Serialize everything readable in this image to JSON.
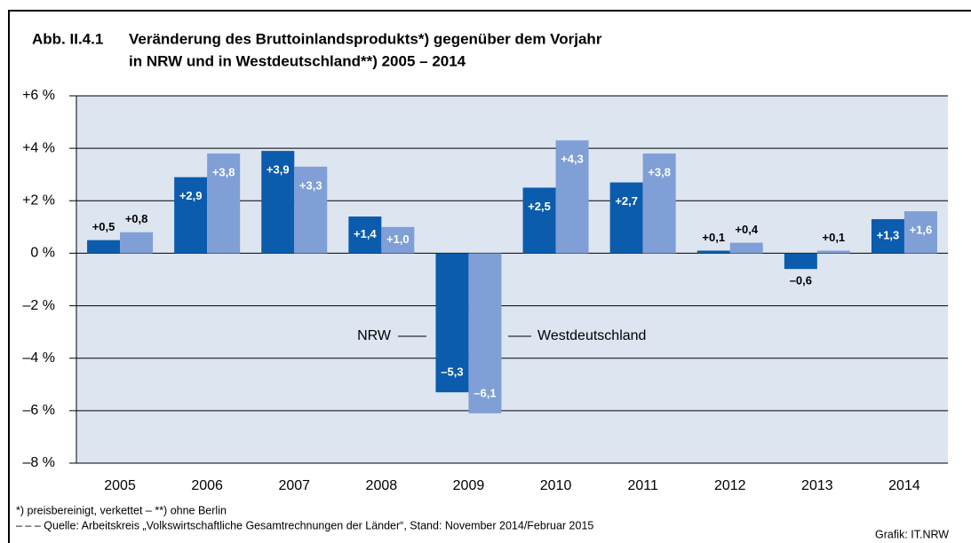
{
  "chart_data": {
    "type": "bar",
    "title_number": "Abb. II.4.1",
    "title": [
      "Veränderung des Bruttoinlandsprodukts*) gegenüber dem Vorjahr",
      "in NRW und in Westdeutschland**) 2005 – 2014"
    ],
    "categories": [
      "2005",
      "2006",
      "2007",
      "2008",
      "2009",
      "2010",
      "2011",
      "2012",
      "2013",
      "2014"
    ],
    "series": [
      {
        "name": "NRW",
        "color": "#0b5cad",
        "values": [
          0.5,
          2.9,
          3.9,
          1.4,
          -5.3,
          2.5,
          2.7,
          0.1,
          -0.6,
          1.3
        ],
        "value_labels": [
          "+0,5",
          "+2,9",
          "+3,9",
          "+1,4",
          "–5,3",
          "+2,5",
          "+2,7",
          "+0,1",
          "–0,6",
          "+1,3"
        ]
      },
      {
        "name": "Westdeutschland",
        "color": "#7f9fd6",
        "values": [
          0.8,
          3.8,
          3.3,
          1.0,
          -6.1,
          4.3,
          3.8,
          0.4,
          0.1,
          1.6
        ],
        "value_labels": [
          "+0,8",
          "+3,8",
          "+3,3",
          "+1,0",
          "–6,1",
          "+4,3",
          "+3,8",
          "+0,4",
          "+0,1",
          "+1,6"
        ]
      }
    ],
    "ylim": [
      -8,
      6
    ],
    "yticks": [
      {
        "value": -8,
        "label": "–8 %"
      },
      {
        "value": -6,
        "label": "–6 %"
      },
      {
        "value": -4,
        "label": "–4 %"
      },
      {
        "value": -2,
        "label": "–2 %"
      },
      {
        "value": 0,
        "label": "0 %"
      },
      {
        "value": 2,
        "label": "+2 %"
      },
      {
        "value": 4,
        "label": "+4 %"
      },
      {
        "value": 6,
        "label": "+6 %"
      }
    ],
    "grid": true,
    "plot_background": "#dde5f1",
    "footnotes": [
      "*) preisbereinigt, verkettet – **) ohne Berlin",
      "– – – Quelle: Arbeitskreis „Volkswirtschaftliche Gesamtrechnungen der Länder“, Stand: November 2014/Februar 2015"
    ],
    "credit": "Grafik: IT.NRW"
  }
}
